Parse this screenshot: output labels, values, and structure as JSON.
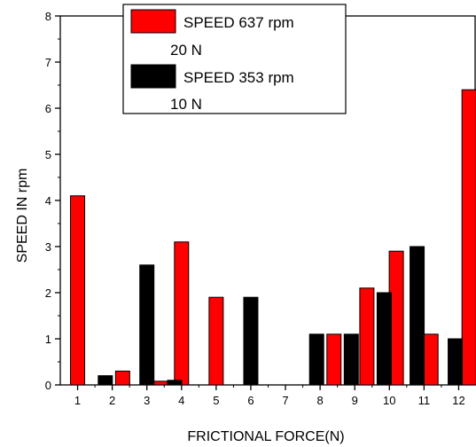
{
  "chart_data": {
    "type": "bar",
    "xlabel": "FRICTIONAL FORCE(N)",
    "ylabel": "SPEED IN rpm",
    "ylim": [
      0,
      8
    ],
    "yticks": [
      "0",
      "1",
      "2",
      "3",
      "4",
      "5",
      "6",
      "7",
      "8"
    ],
    "categories": [
      "1",
      "2",
      "3",
      "4",
      "5",
      "6",
      "7",
      "8",
      "9",
      "10",
      "11",
      "12"
    ],
    "series": [
      {
        "name": "SPEED 637 rpm 20 N",
        "legend_line1": "SPEED 637 rpm",
        "legend_line2": "20 N",
        "color": "#ff0000",
        "points": [
          {
            "x": 1,
            "y": 4.1
          },
          {
            "x": 2.3,
            "y": 0.3
          },
          {
            "x": 3.4,
            "y": 0.08
          },
          {
            "x": 4,
            "y": 3.1
          },
          {
            "x": 5,
            "y": 1.9
          },
          {
            "x": 8.4,
            "y": 1.1
          },
          {
            "x": 9.35,
            "y": 2.1
          },
          {
            "x": 10.2,
            "y": 2.9
          },
          {
            "x": 11.2,
            "y": 1.1
          },
          {
            "x": 12.3,
            "y": 6.4
          }
        ]
      },
      {
        "name": "SPEED 353 rpm 10 N",
        "legend_line1": "SPEED 353 rpm",
        "legend_line2": "10 N",
        "color": "#000000",
        "points": [
          {
            "x": 1.8,
            "y": 0.2
          },
          {
            "x": 3,
            "y": 2.6
          },
          {
            "x": 3.8,
            "y": 0.1
          },
          {
            "x": 6,
            "y": 1.9
          },
          {
            "x": 7.9,
            "y": 1.1
          },
          {
            "x": 8.9,
            "y": 1.1
          },
          {
            "x": 9.85,
            "y": 2.0
          },
          {
            "x": 10.8,
            "y": 3.0
          },
          {
            "x": 11.9,
            "y": 1.0
          }
        ]
      }
    ],
    "legend_position": "top-center",
    "grid": false
  }
}
